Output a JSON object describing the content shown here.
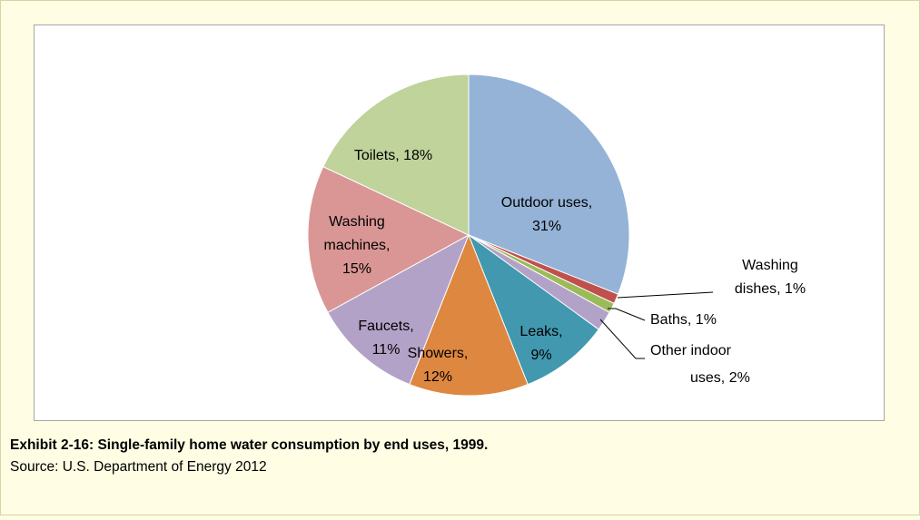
{
  "chart_data": {
    "type": "pie",
    "title": "Exhibit 2-16: Single-family home water consumption by end uses, 1999.",
    "source": "Source: U.S. Department of Energy 2012",
    "categories": [
      "Outdoor uses",
      "Washing dishes",
      "Baths",
      "Other indoor uses",
      "Leaks",
      "Showers",
      "Faucets",
      "Washing machines",
      "Toilets"
    ],
    "values": [
      31,
      1,
      1,
      2,
      9,
      12,
      11,
      15,
      18
    ],
    "value_labels": [
      [
        "Outdoor uses,",
        "31%"
      ],
      [
        "Washing",
        "dishes, 1%"
      ],
      [
        "Baths,  1%"
      ],
      [
        "Other indoor",
        "uses, 2%"
      ],
      [
        "Leaks,",
        "9%"
      ],
      [
        "Showers,",
        "12%"
      ],
      [
        "Faucets,",
        "11%"
      ],
      [
        "Washing",
        "machines,",
        "15%"
      ],
      [
        "Toilets, 18%"
      ]
    ],
    "colors": [
      "#95B3D7",
      "#C0504D",
      "#9BBB59",
      "#B3A2C7",
      "#4198AF",
      "#DE8740",
      "#B3A2C7",
      "#D99694",
      "#BFD39A"
    ]
  }
}
